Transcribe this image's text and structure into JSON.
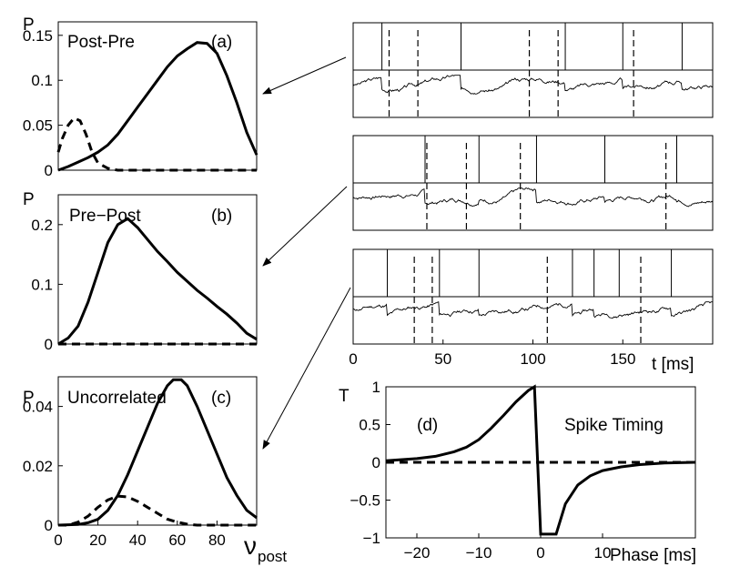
{
  "chart_data": [
    {
      "id": "a",
      "type": "line",
      "ylabel": "P",
      "panel_label": "(a)",
      "annotation": "Post-Pre",
      "xlim": [
        0,
        100
      ],
      "ylim": [
        0,
        0.15
      ],
      "yticks": [
        0,
        0.05,
        0.1,
        0.15
      ],
      "ytick_labels": [
        "0",
        "0.05",
        "0.1",
        "0.15"
      ],
      "series": [
        {
          "style": "solid",
          "x": [
            0,
            5,
            10,
            15,
            20,
            25,
            30,
            35,
            40,
            45,
            50,
            55,
            60,
            65,
            70,
            75,
            80,
            85,
            90,
            95,
            100
          ],
          "y": [
            0.0,
            0.004,
            0.009,
            0.014,
            0.02,
            0.028,
            0.04,
            0.055,
            0.07,
            0.085,
            0.1,
            0.115,
            0.127,
            0.135,
            0.142,
            0.141,
            0.13,
            0.105,
            0.075,
            0.042,
            0.017
          ]
        },
        {
          "style": "dashed",
          "x": [
            0,
            2,
            5,
            8,
            11,
            14,
            17,
            20,
            25,
            30,
            40,
            50,
            60,
            70,
            80,
            90,
            100
          ],
          "y": [
            0.02,
            0.035,
            0.05,
            0.058,
            0.055,
            0.04,
            0.02,
            0.008,
            0.002,
            0,
            0,
            0,
            0,
            0,
            0,
            0,
            0
          ]
        }
      ]
    },
    {
      "id": "b",
      "type": "line",
      "ylabel": "P",
      "panel_label": "(b)",
      "annotation": "Pre−Post",
      "xlim": [
        0,
        100
      ],
      "ylim": [
        0,
        0.25
      ],
      "yticks": [
        0,
        0.1,
        0.2
      ],
      "ytick_labels": [
        "0",
        "0.1",
        "0.2"
      ],
      "series": [
        {
          "style": "solid",
          "x": [
            0,
            5,
            10,
            15,
            20,
            25,
            30,
            35,
            40,
            45,
            50,
            55,
            60,
            65,
            70,
            75,
            80,
            85,
            90,
            95,
            100
          ],
          "y": [
            0,
            0.01,
            0.03,
            0.07,
            0.12,
            0.17,
            0.2,
            0.21,
            0.195,
            0.175,
            0.155,
            0.138,
            0.12,
            0.105,
            0.09,
            0.077,
            0.063,
            0.05,
            0.035,
            0.018,
            0.008
          ]
        },
        {
          "style": "dashed",
          "x": [
            0,
            100
          ],
          "y": [
            0,
            0
          ]
        }
      ]
    },
    {
      "id": "c",
      "type": "line",
      "ylabel": "P",
      "panel_label": "(c)",
      "annotation": "Uncorrelated",
      "xlabel": "ν",
      "xlabel_sub": "post",
      "xlim": [
        0,
        100
      ],
      "ylim": [
        0,
        0.05
      ],
      "xticks": [
        0,
        20,
        40,
        60,
        80
      ],
      "xtick_labels": [
        "0",
        "20",
        "40",
        "60",
        "80"
      ],
      "yticks": [
        0,
        0.02,
        0.04
      ],
      "ytick_labels": [
        "0",
        "0.02",
        "0.04"
      ],
      "series": [
        {
          "style": "solid",
          "x": [
            0,
            10,
            15,
            20,
            25,
            30,
            35,
            40,
            45,
            50,
            55,
            58,
            62,
            65,
            70,
            75,
            80,
            85,
            90,
            95,
            100
          ],
          "y": [
            0,
            0.0002,
            0.0008,
            0.002,
            0.005,
            0.01,
            0.017,
            0.025,
            0.033,
            0.041,
            0.047,
            0.049,
            0.049,
            0.047,
            0.04,
            0.032,
            0.024,
            0.016,
            0.01,
            0.005,
            0.0025
          ]
        },
        {
          "style": "dashed",
          "x": [
            0,
            5,
            10,
            15,
            20,
            25,
            30,
            35,
            40,
            45,
            50,
            55,
            60,
            65,
            70,
            80,
            90,
            100
          ],
          "y": [
            0,
            0,
            0.001,
            0.003,
            0.006,
            0.0085,
            0.0098,
            0.0095,
            0.008,
            0.006,
            0.004,
            0.002,
            0.001,
            0.0003,
            0,
            0,
            0,
            0
          ]
        }
      ]
    },
    {
      "id": "d",
      "type": "line",
      "ylabel": "T",
      "panel_label": "(d)",
      "annotation": "Spike Timing",
      "xlabel": "Phase [ms]",
      "xlim": [
        -25,
        25
      ],
      "ylim": [
        -1,
        1
      ],
      "xticks": [
        -20,
        -10,
        0,
        10
      ],
      "xtick_labels": [
        "−20",
        "−10",
        "0",
        "10"
      ],
      "yticks": [
        -1,
        -0.5,
        0,
        0.5,
        1
      ],
      "ytick_labels": [
        "−1",
        "−0.5",
        "0",
        "0.5",
        "1"
      ],
      "series": [
        {
          "style": "solid",
          "x": [
            -25,
            -20,
            -17,
            -14,
            -12,
            -10,
            -8,
            -6,
            -4,
            -2,
            -1,
            0,
            0.5,
            2,
            2.5,
            4,
            6,
            8,
            10,
            13,
            16,
            20,
            25
          ],
          "y": [
            0.02,
            0.05,
            0.08,
            0.14,
            0.2,
            0.3,
            0.45,
            0.62,
            0.8,
            0.95,
            1,
            -0.95,
            -0.95,
            -0.95,
            -0.95,
            -0.55,
            -0.3,
            -0.18,
            -0.11,
            -0.06,
            -0.03,
            -0.01,
            0
          ]
        },
        {
          "style": "dashed",
          "x": [
            -25,
            25
          ],
          "y": [
            0,
            0
          ]
        }
      ]
    },
    {
      "id": "traces",
      "type": "line",
      "xlabel": "t [ms]",
      "xlim": [
        0,
        200
      ],
      "xticks": [
        0,
        50,
        100,
        150
      ],
      "xtick_labels": [
        "0",
        "50",
        "100",
        "150"
      ],
      "rows": [
        {
          "post_spikes": [
            16,
            60,
            118,
            150,
            183
          ],
          "pre_spikes": [
            20,
            36,
            98,
            114,
            156
          ],
          "trace_seed": 3,
          "base": 0.25
        },
        {
          "post_spikes": [
            40,
            70,
            102,
            140,
            180
          ],
          "pre_spikes": [
            41,
            63,
            93,
            174
          ],
          "trace_seed": 7,
          "base": 0.27
        },
        {
          "post_spikes": [
            19,
            48,
            70,
            122,
            134,
            148,
            177
          ],
          "pre_spikes": [
            34,
            44,
            108,
            160
          ],
          "trace_seed": 11,
          "base": 0.3
        }
      ]
    }
  ]
}
